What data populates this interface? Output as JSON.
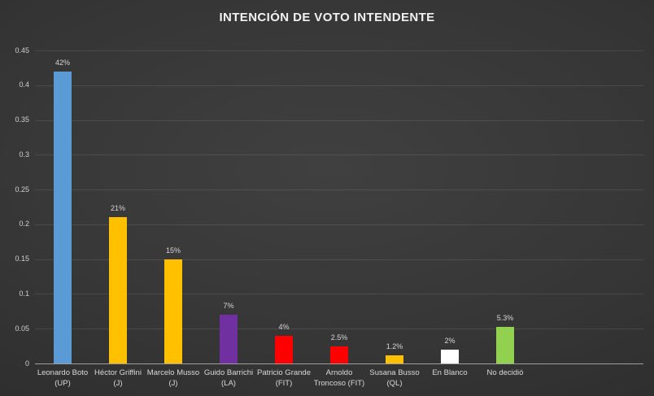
{
  "title": "INTENCIÓN DE VOTO INTENDENTE",
  "chart_data": {
    "type": "bar",
    "title": "INTENCIÓN DE VOTO INTENDENTE",
    "categories": [
      "Leonardo Boto (UP)",
      "Héctor Griffini (J)",
      "Marcelo Musso (J)",
      "Guido Barrichi (LA)",
      "Patricio Grande (FIT)",
      "Arnoldo Troncoso (FIT)",
      "Susana Busso (QL)",
      "En Blanco",
      "No decidió"
    ],
    "values": [
      0.42,
      0.21,
      0.15,
      0.07,
      0.04,
      0.025,
      0.012,
      0.02,
      0.053
    ],
    "data_labels": [
      "42%",
      "21%",
      "15%",
      "7%",
      "4%",
      "2.5%",
      "1.2%",
      "2%",
      "5.3%"
    ],
    "bar_colors": [
      "#5B9BD5",
      "#FFC000",
      "#FFC000",
      "#7030A0",
      "#FF0000",
      "#FF0000",
      "#FFC000",
      "#FFFFFF",
      "#92D050"
    ],
    "xlabel": "",
    "ylabel": "",
    "ylim": [
      0,
      0.45
    ],
    "ytick_labels": [
      "0",
      "0.05",
      "0.1",
      "0.15",
      "0.2",
      "0.25",
      "0.3",
      "0.35",
      "0.4",
      "0.45"
    ],
    "ytick_values": [
      0,
      0.05,
      0.1,
      0.15,
      0.2,
      0.25,
      0.3,
      0.35,
      0.4,
      0.45
    ],
    "grid": true,
    "legend": "none",
    "total_category_slots": 11,
    "background_color": "#353535",
    "text_color": "#d9d9d9",
    "axis_line_color": "#9e9e9e"
  }
}
